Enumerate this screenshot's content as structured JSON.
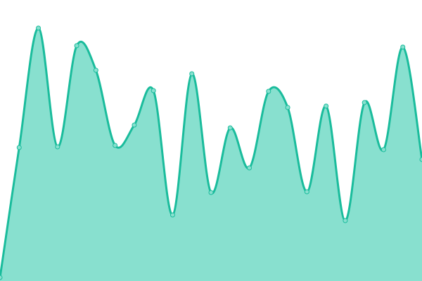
{
  "chart_data": {
    "type": "area",
    "title": "",
    "xlabel": "",
    "ylabel": "",
    "x": [
      0,
      1,
      2,
      3,
      4,
      5,
      6,
      7,
      8,
      9,
      10,
      11,
      12,
      13,
      14,
      15,
      16,
      17,
      18,
      19,
      20,
      21,
      22
    ],
    "values": [
      5,
      190,
      360,
      191,
      335,
      300,
      193,
      222,
      271,
      94,
      295,
      126,
      218,
      161,
      270,
      247,
      127,
      249,
      86,
      254,
      187,
      333,
      173
    ],
    "ylim": [
      0,
      400
    ],
    "xlim": [
      0,
      22
    ],
    "grid": false,
    "axes_visible": false,
    "curve": "smooth",
    "colors": {
      "line": "#1abc9c",
      "fill": "#88e0cf",
      "point_fill": "#88e0cf",
      "point_stroke": "#1abc9c"
    }
  }
}
